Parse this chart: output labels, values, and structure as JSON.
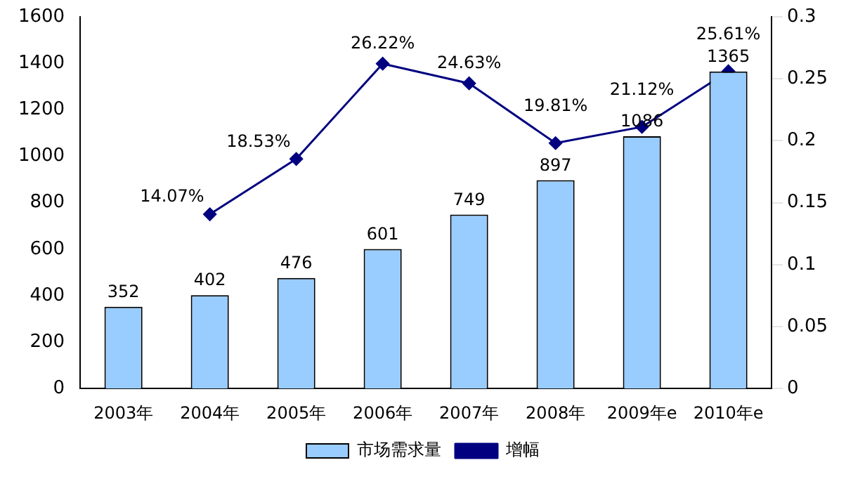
{
  "chart_data": {
    "type": "bar",
    "categories": [
      "2003年",
      "2004年",
      "2005年",
      "2006年",
      "2007年",
      "2008年",
      "2009年e",
      "2010年e"
    ],
    "series": [
      {
        "name": "市场需求量",
        "color": "#99ccff",
        "values": [
          352,
          402,
          476,
          601,
          749,
          897,
          1086,
          1365
        ],
        "value_labels": [
          "352",
          "402",
          "476",
          "601",
          "749",
          "897",
          "1086",
          "1365"
        ]
      },
      {
        "name": "增幅",
        "type": "line",
        "axis": "y2",
        "color": "#000080",
        "marker": "diamond",
        "values": [
          null,
          0.1407,
          0.1853,
          0.2622,
          0.2463,
          0.1981,
          0.2112,
          0.2561
        ],
        "value_labels": [
          null,
          "14.07%",
          "18.53%",
          "26.22%",
          "24.63%",
          "19.81%",
          "21.12%",
          "25.61%"
        ]
      }
    ],
    "ylim": [
      0,
      1600
    ],
    "yticks": [
      0,
      200,
      400,
      600,
      800,
      1000,
      1200,
      1400,
      1600
    ],
    "y2lim": [
      0,
      0.3
    ],
    "y2ticks": [
      0,
      0.05,
      0.1,
      0.15,
      0.2,
      0.25,
      0.3
    ],
    "grid": false,
    "legend": "bottom"
  }
}
